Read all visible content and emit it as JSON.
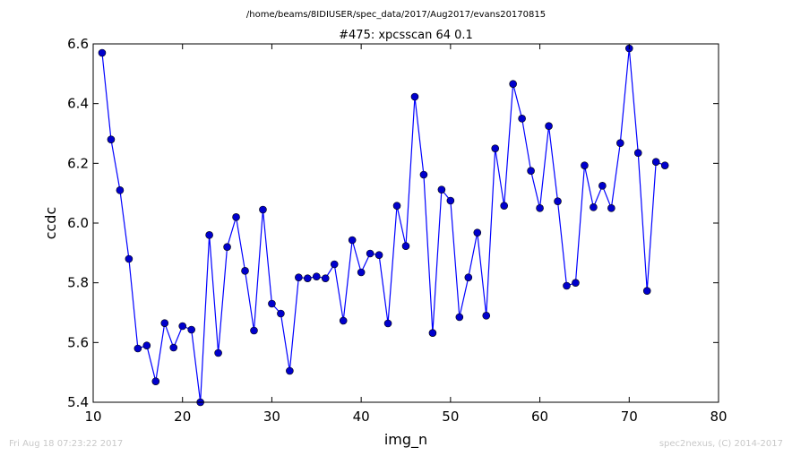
{
  "header": {
    "path": "/home/beams/8IDIUSER/spec_data/2017/Aug2017/evans20170815"
  },
  "footer": {
    "timestamp": "Fri Aug 18 07:23:22 2017",
    "credit": "spec2nexus, (C) 2014-2017"
  },
  "colors": {
    "series": "#0000ff",
    "marker": "#0000cc"
  },
  "chart_data": {
    "type": "line",
    "title": "#475: xpcsscan 64 0.1",
    "xlabel": "img_n",
    "ylabel": "ccdc",
    "xlim": [
      10,
      80
    ],
    "ylim": [
      5.4,
      6.6
    ],
    "xticks": [
      10,
      20,
      30,
      40,
      50,
      60,
      70,
      80
    ],
    "yticks": [
      5.4,
      5.6,
      5.8,
      6.0,
      6.2,
      6.4,
      6.6
    ],
    "xtick_labels": [
      "10",
      "20",
      "30",
      "40",
      "50",
      "60",
      "70",
      "80"
    ],
    "ytick_labels": [
      "5.4",
      "5.6",
      "5.8",
      "6.0",
      "6.2",
      "6.4",
      "6.6"
    ],
    "grid": false,
    "marker": "circle",
    "x": [
      11,
      12,
      13,
      14,
      15,
      16,
      17,
      18,
      19,
      20,
      21,
      22,
      23,
      24,
      25,
      26,
      27,
      28,
      29,
      30,
      31,
      32,
      33,
      34,
      35,
      36,
      37,
      38,
      39,
      40,
      41,
      42,
      43,
      44,
      45,
      46,
      47,
      48,
      49,
      50,
      51,
      52,
      53,
      54,
      55,
      56,
      57,
      58,
      59,
      60,
      61,
      62,
      63,
      64,
      65,
      66,
      67,
      68,
      69,
      70,
      71,
      72,
      73,
      74
    ],
    "y": [
      6.57,
      6.28,
      6.11,
      5.88,
      5.58,
      5.59,
      5.47,
      5.665,
      5.583,
      5.655,
      5.643,
      5.4,
      5.96,
      5.565,
      5.92,
      6.02,
      5.84,
      5.64,
      6.045,
      5.73,
      5.697,
      5.505,
      5.818,
      5.815,
      5.821,
      5.815,
      5.862,
      5.673,
      5.943,
      5.835,
      5.898,
      5.893,
      5.664,
      6.058,
      5.923,
      6.423,
      6.162,
      5.632,
      6.112,
      6.075,
      5.685,
      5.818,
      5.968,
      5.69,
      6.25,
      6.058,
      6.466,
      6.35,
      6.175,
      6.05,
      6.325,
      6.073,
      5.79,
      5.8,
      6.193,
      6.053,
      6.125,
      6.05,
      6.268,
      6.585,
      6.235,
      5.773,
      6.205,
      6.193
    ]
  }
}
